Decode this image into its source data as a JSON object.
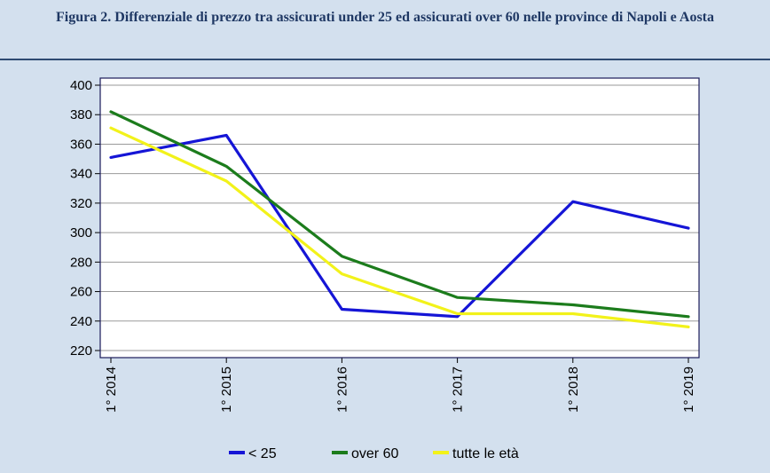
{
  "title": "Figura 2. Differenziale di prezzo tra assicurati under 25 ed assicurati over 60 nelle province di Napoli e Aosta",
  "chart_data": {
    "type": "line",
    "title": "",
    "xlabel": "",
    "ylabel": "",
    "x": [
      "1° 2014",
      "1° 2015",
      "1° 2016",
      "1° 2017",
      "1° 2018",
      "1° 2019"
    ],
    "ylim": [
      220,
      400
    ],
    "yticks": [
      220,
      240,
      260,
      280,
      300,
      320,
      340,
      360,
      380,
      400
    ],
    "grid": true,
    "legend": "bottom",
    "series": [
      {
        "name": "< 25",
        "color": "#1515d6",
        "values": [
          351,
          366,
          248,
          243,
          321,
          303
        ]
      },
      {
        "name": "over 60",
        "color": "#1c7c1c",
        "values": [
          382,
          345,
          284,
          256,
          251,
          243
        ]
      },
      {
        "name": "tutte le età",
        "color": "#f2f21a",
        "values": [
          371,
          335,
          272,
          245,
          245,
          236
        ]
      }
    ]
  }
}
